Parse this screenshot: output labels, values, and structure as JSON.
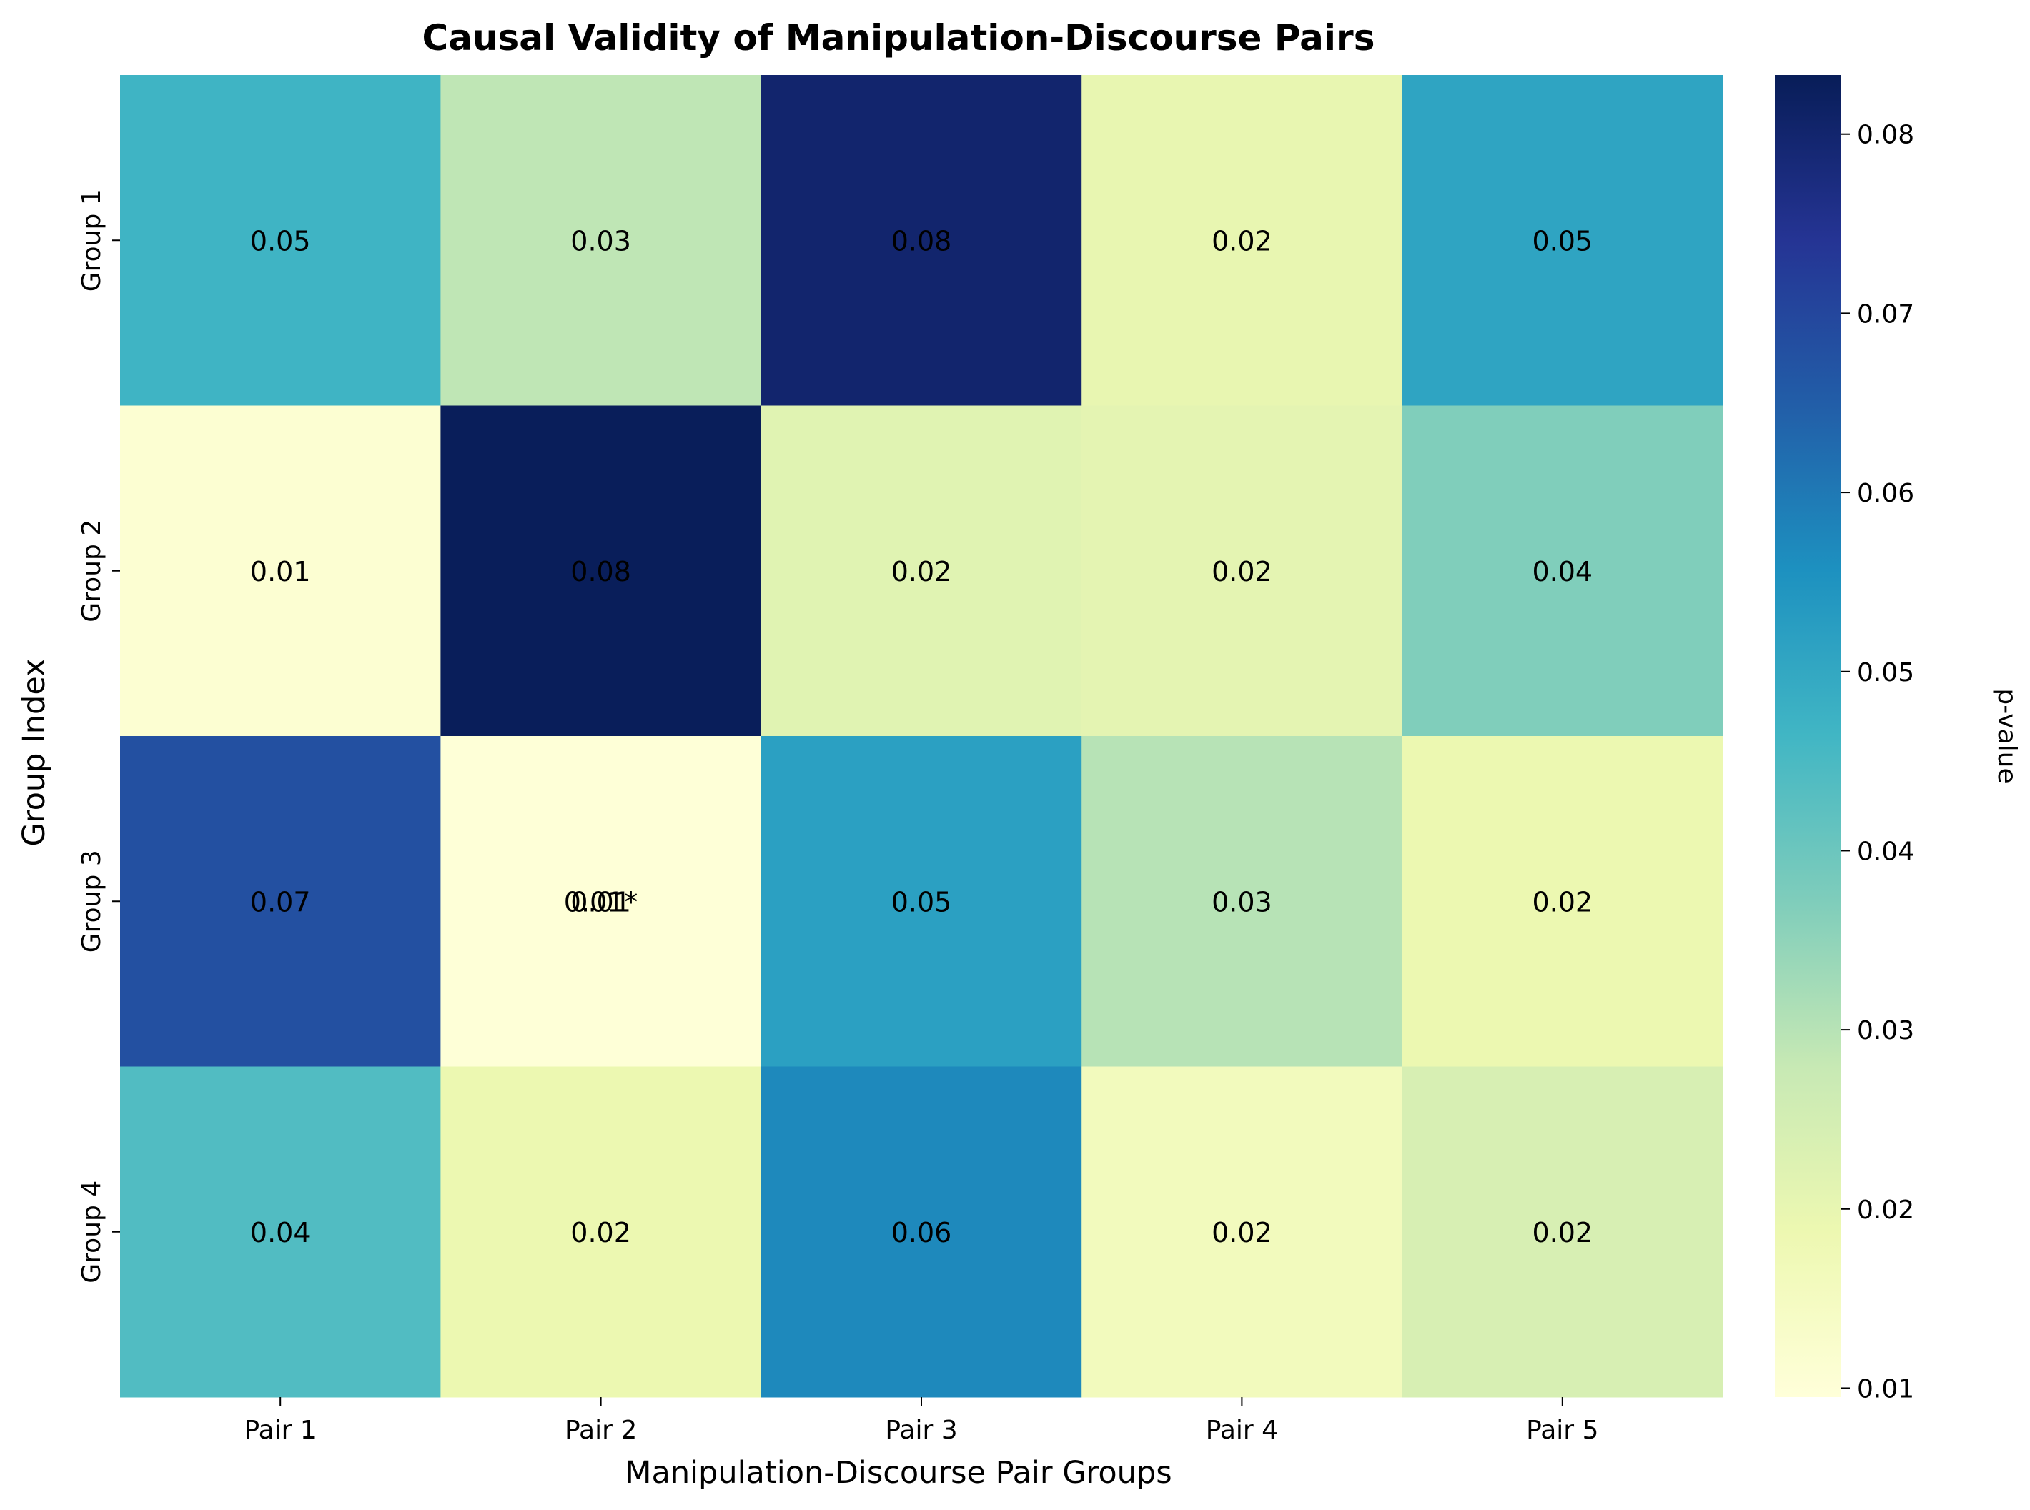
{
  "chart_data": {
    "type": "heatmap",
    "title": "Causal Validity of Manipulation-Discourse Pairs",
    "xlabel": "Manipulation-Discourse Pair Groups",
    "ylabel": "Group Index",
    "x_categories": [
      "Pair 1",
      "Pair 2",
      "Pair 3",
      "Pair 4",
      "Pair 5"
    ],
    "y_categories": [
      "Group 1",
      "Group 2",
      "Group 3",
      "Group 4"
    ],
    "values": [
      [
        0.047,
        0.029,
        0.08,
        0.02,
        0.051
      ],
      [
        0.011,
        0.083,
        0.022,
        0.021,
        0.037
      ],
      [
        0.068,
        0.01,
        0.052,
        0.03,
        0.019
      ],
      [
        0.044,
        0.019,
        0.057,
        0.016,
        0.024
      ]
    ],
    "cell_labels": [
      [
        "0.05",
        "0.03",
        "0.08",
        "0.02",
        "0.05"
      ],
      [
        "0.01",
        "0.08",
        "0.02",
        "0.02",
        "0.04"
      ],
      [
        "0.07",
        "0.01",
        "0.05",
        "0.03",
        "0.02"
      ],
      [
        "0.04",
        "0.02",
        "0.06",
        "0.02",
        "0.02"
      ]
    ],
    "annotations": [
      {
        "row": 2,
        "col": 1,
        "text": "0.01*"
      }
    ],
    "colorbar": {
      "label": "p-value",
      "vmin": 0.0095,
      "vmax": 0.0833,
      "ticks": [
        "0.01",
        "0.02",
        "0.03",
        "0.04",
        "0.05",
        "0.06",
        "0.07",
        "0.08"
      ],
      "tick_values": [
        0.01,
        0.02,
        0.03,
        0.04,
        0.05,
        0.06,
        0.07,
        0.08
      ],
      "colormap": "YlGnBu",
      "colormap_stops": [
        "#ffffd9",
        "#edf8b1",
        "#c7e9b4",
        "#7fcdbb",
        "#41b6c4",
        "#1d91c0",
        "#225ea8",
        "#253494",
        "#081d58"
      ]
    },
    "grid": false
  }
}
